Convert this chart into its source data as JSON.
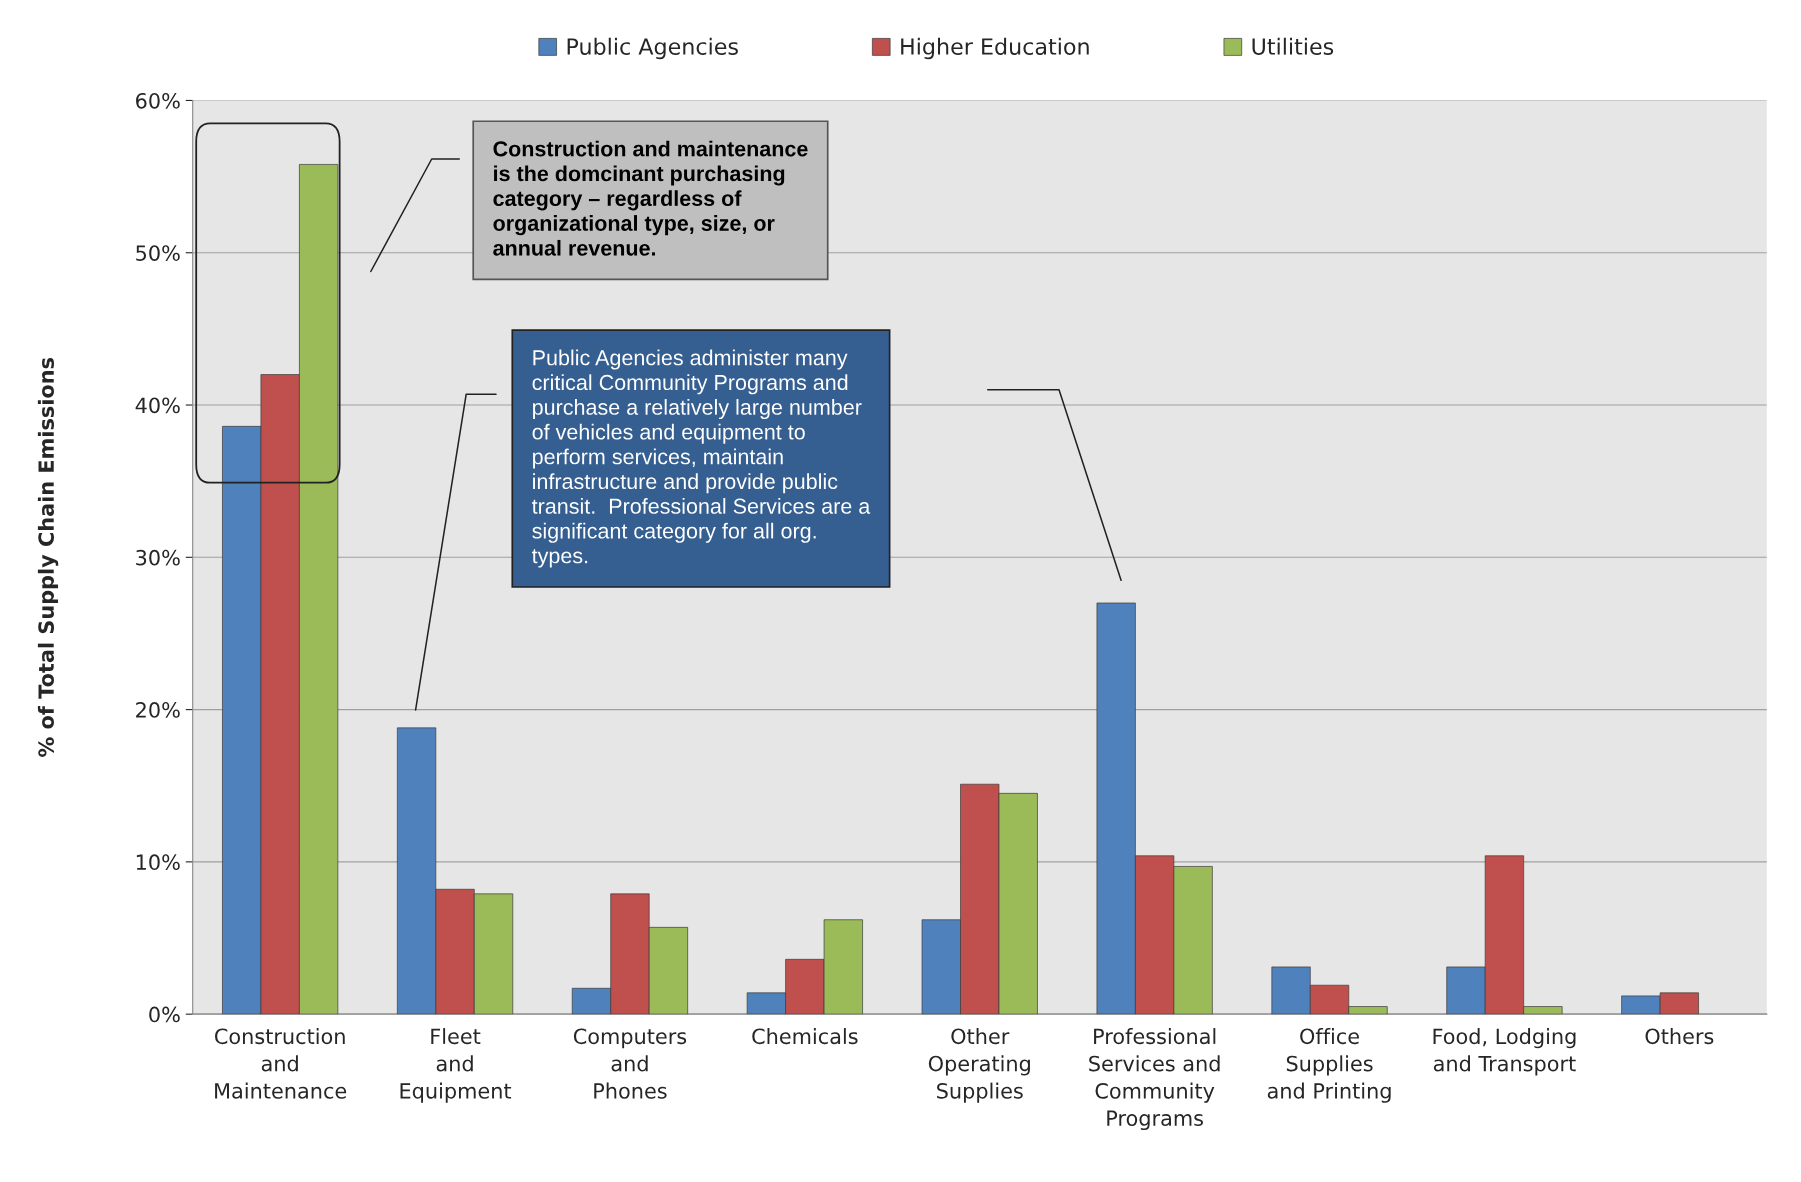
{
  "chart_data": {
    "type": "bar",
    "ylabel": "% of Total Supply Chain Emissions",
    "categories": [
      "Construction\nand\nMaintenance",
      "Fleet\nand\nEquipment",
      "Computers\nand\nPhones",
      "Chemicals",
      "Other\nOperating\nSupplies",
      "Professional\nServices and\nCommunity\nPrograms",
      "Office\nSupplies\nand Printing",
      "Food, Lodging\nand Transport",
      "Others"
    ],
    "series": [
      {
        "name": "Public Agencies",
        "color": "#4f81bd",
        "values": [
          38.6,
          18.8,
          1.7,
          1.4,
          6.2,
          27.0,
          3.1,
          3.1,
          1.2
        ]
      },
      {
        "name": "Higher Education",
        "color": "#c0504d",
        "values": [
          42.0,
          8.2,
          7.9,
          3.6,
          15.1,
          10.4,
          1.9,
          10.4,
          1.4
        ]
      },
      {
        "name": "Utilities",
        "color": "#9bbb59",
        "values": [
          55.8,
          7.9,
          5.7,
          6.2,
          14.5,
          9.7,
          0.5,
          0.5,
          null
        ]
      }
    ],
    "ylim": [
      0,
      60
    ],
    "yticks": [
      {
        "value": 0,
        "label": "0%"
      },
      {
        "value": 10,
        "label": "10%"
      },
      {
        "value": 20,
        "label": "20%"
      },
      {
        "value": 30,
        "label": "30%"
      },
      {
        "value": 40,
        "label": "40%"
      },
      {
        "value": 50,
        "label": "50%"
      },
      {
        "value": 60,
        "label": "60%"
      }
    ],
    "grid": "y",
    "legend": "top",
    "annotations": [
      "Construction and maintenance\nis the domcinant purchasing\ncategory – regardless of\norganizational type, size, or\nannual revenue.",
      "Public Agencies administer many\ncritical Community Programs and\npurchase a relatively large number\nof vehicles and equipment to\nperform services, maintain\ninfrastructure and provide public\ntransit.  Professional Services are a\nsignificant category for all org.\ntypes."
    ]
  }
}
